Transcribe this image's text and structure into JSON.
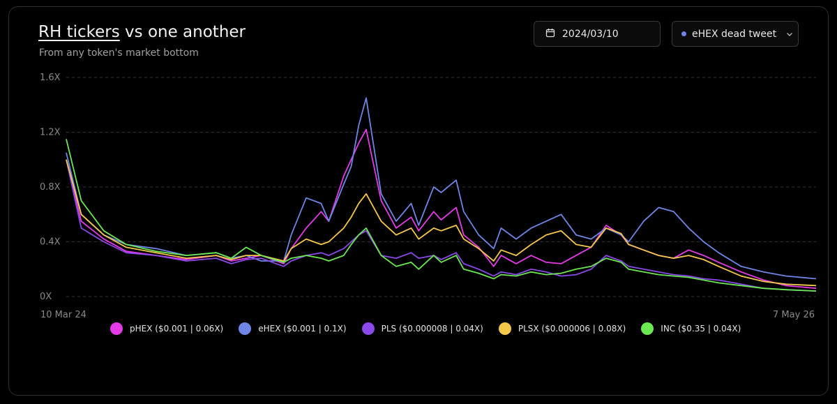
{
  "header": {
    "title_link": "RH tickers",
    "title_rest": " vs one another",
    "subtitle": "From any token's market bottom"
  },
  "controls": {
    "date_value": "2024/03/10",
    "select_value": "eHEX dead tweet",
    "select_dot_color": "#6f86e6"
  },
  "chart_data": {
    "type": "line",
    "title": "RH tickers vs one another",
    "subtitle": "From any token's market bottom",
    "y_ticks": [
      "1.6X",
      "1.2X",
      "0.8X",
      "0.4X",
      "0X"
    ],
    "y_tick_values": [
      1.6,
      1.2,
      0.8,
      0.4,
      0
    ],
    "ylim": [
      0,
      1.6
    ],
    "x_start_label": "10 Mar 24",
    "x_end_label": "7 May 26",
    "grid": true,
    "legend_position": "bottom",
    "x": [
      0,
      0.02,
      0.05,
      0.08,
      0.12,
      0.16,
      0.2,
      0.22,
      0.24,
      0.26,
      0.29,
      0.3,
      0.32,
      0.34,
      0.35,
      0.37,
      0.38,
      0.39,
      0.4,
      0.42,
      0.44,
      0.46,
      0.47,
      0.49,
      0.5,
      0.52,
      0.53,
      0.55,
      0.57,
      0.58,
      0.6,
      0.62,
      0.64,
      0.66,
      0.68,
      0.7,
      0.72,
      0.74,
      0.75,
      0.77,
      0.79,
      0.81,
      0.83,
      0.85,
      0.87,
      0.9,
      0.93,
      0.96,
      1.0
    ],
    "series": [
      {
        "name": "pHEX ($0.001 | 0.06X)",
        "color": "#e53ae8",
        "values": [
          1.0,
          0.55,
          0.42,
          0.33,
          0.3,
          0.27,
          0.3,
          0.26,
          0.28,
          0.3,
          0.24,
          0.35,
          0.5,
          0.62,
          0.55,
          0.88,
          1.0,
          1.12,
          1.22,
          0.7,
          0.5,
          0.58,
          0.48,
          0.62,
          0.56,
          0.65,
          0.45,
          0.36,
          0.22,
          0.3,
          0.24,
          0.3,
          0.25,
          0.24,
          0.3,
          0.36,
          0.52,
          0.45,
          0.38,
          0.34,
          0.3,
          0.28,
          0.34,
          0.3,
          0.25,
          0.18,
          0.12,
          0.08,
          0.06
        ]
      },
      {
        "name": "eHEX ($0.001 | 0.1X)",
        "color": "#6f86e6",
        "values": [
          1.05,
          0.6,
          0.45,
          0.38,
          0.35,
          0.3,
          0.32,
          0.28,
          0.3,
          0.26,
          0.26,
          0.45,
          0.72,
          0.68,
          0.55,
          0.82,
          0.95,
          1.25,
          1.45,
          0.75,
          0.55,
          0.68,
          0.52,
          0.8,
          0.76,
          0.85,
          0.62,
          0.45,
          0.35,
          0.5,
          0.42,
          0.5,
          0.55,
          0.6,
          0.45,
          0.42,
          0.5,
          0.45,
          0.4,
          0.55,
          0.65,
          0.62,
          0.5,
          0.4,
          0.32,
          0.22,
          0.18,
          0.15,
          0.13
        ]
      },
      {
        "name": "PLS ($0.000008 | 0.04X)",
        "color": "#8b49ea",
        "values": [
          1.0,
          0.5,
          0.4,
          0.32,
          0.3,
          0.26,
          0.28,
          0.24,
          0.27,
          0.28,
          0.22,
          0.26,
          0.3,
          0.32,
          0.3,
          0.35,
          0.4,
          0.45,
          0.48,
          0.3,
          0.28,
          0.32,
          0.28,
          0.3,
          0.27,
          0.32,
          0.24,
          0.2,
          0.15,
          0.18,
          0.16,
          0.2,
          0.18,
          0.15,
          0.16,
          0.2,
          0.3,
          0.26,
          0.22,
          0.2,
          0.18,
          0.16,
          0.15,
          0.13,
          0.12,
          0.09,
          0.06,
          0.05,
          0.04
        ]
      },
      {
        "name": "PLSX ($0.000006 | 0.08X)",
        "color": "#f5c84c",
        "values": [
          1.0,
          0.6,
          0.45,
          0.36,
          0.32,
          0.28,
          0.3,
          0.27,
          0.3,
          0.3,
          0.26,
          0.35,
          0.42,
          0.38,
          0.4,
          0.5,
          0.58,
          0.68,
          0.75,
          0.55,
          0.45,
          0.5,
          0.42,
          0.5,
          0.48,
          0.52,
          0.42,
          0.35,
          0.26,
          0.34,
          0.3,
          0.38,
          0.45,
          0.48,
          0.38,
          0.36,
          0.5,
          0.46,
          0.38,
          0.34,
          0.3,
          0.28,
          0.3,
          0.27,
          0.22,
          0.15,
          0.11,
          0.09,
          0.08
        ]
      },
      {
        "name": "INC ($0.35 | 0.04X)",
        "color": "#6be852",
        "values": [
          1.15,
          0.7,
          0.48,
          0.38,
          0.33,
          0.3,
          0.32,
          0.28,
          0.36,
          0.3,
          0.25,
          0.28,
          0.3,
          0.28,
          0.26,
          0.3,
          0.38,
          0.45,
          0.5,
          0.3,
          0.22,
          0.25,
          0.2,
          0.3,
          0.25,
          0.3,
          0.2,
          0.17,
          0.13,
          0.16,
          0.15,
          0.18,
          0.16,
          0.17,
          0.2,
          0.22,
          0.28,
          0.25,
          0.2,
          0.18,
          0.16,
          0.15,
          0.14,
          0.12,
          0.1,
          0.08,
          0.06,
          0.05,
          0.04
        ]
      }
    ]
  }
}
